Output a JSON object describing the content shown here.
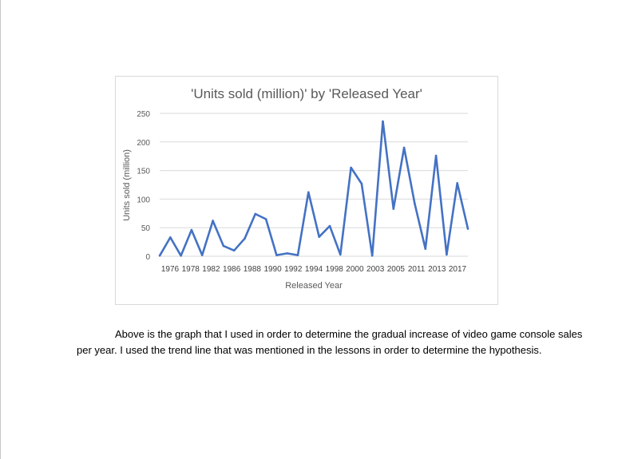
{
  "chart_data": {
    "type": "line",
    "title": "'Units sold (million)' by 'Released Year'",
    "xlabel": "Released Year",
    "ylabel": "Units sold (million)",
    "ylim": [
      0,
      250
    ],
    "yticks": [
      0,
      50,
      100,
      150,
      200,
      250
    ],
    "x_tick_labels": [
      "1976",
      "1978",
      "1982",
      "1986",
      "1988",
      "1990",
      "1992",
      "1994",
      "1998",
      "2000",
      "2003",
      "2005",
      "2011",
      "2013",
      "2017"
    ],
    "grid": true,
    "series_color": "#4472c4",
    "series": [
      {
        "values": [
          1,
          33,
          1,
          46,
          2,
          62,
          18,
          10,
          31,
          74,
          65,
          2,
          5,
          2,
          112,
          34,
          53,
          3,
          155,
          127,
          1,
          236,
          83,
          190,
          92,
          13,
          176,
          3,
          128,
          48
        ]
      }
    ]
  },
  "document": {
    "paragraph": "Above is the graph that I used in order to determine the gradual increase of video game console sales per year. I used the trend line that was mentioned in the lessons in order to determine the hypothesis."
  }
}
